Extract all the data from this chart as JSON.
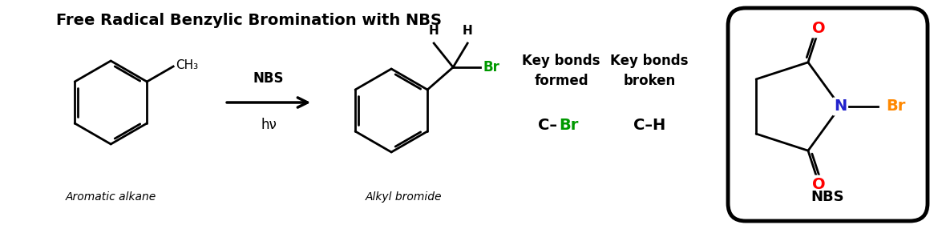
{
  "title": "Free Radical Benzylic Bromination with NBS",
  "title_fontsize": 14,
  "title_weight": "bold",
  "reagent_label": "NBS",
  "condition_label": "hν",
  "label_aromatic": "Aromatic alkane",
  "label_alkyl": "Alkyl bromide",
  "nbs_label": "NBS",
  "background_color": "#ffffff",
  "black": "#000000",
  "green": "#009900",
  "blue": "#2222cc",
  "orange": "#ff8800",
  "red": "#ff0000"
}
